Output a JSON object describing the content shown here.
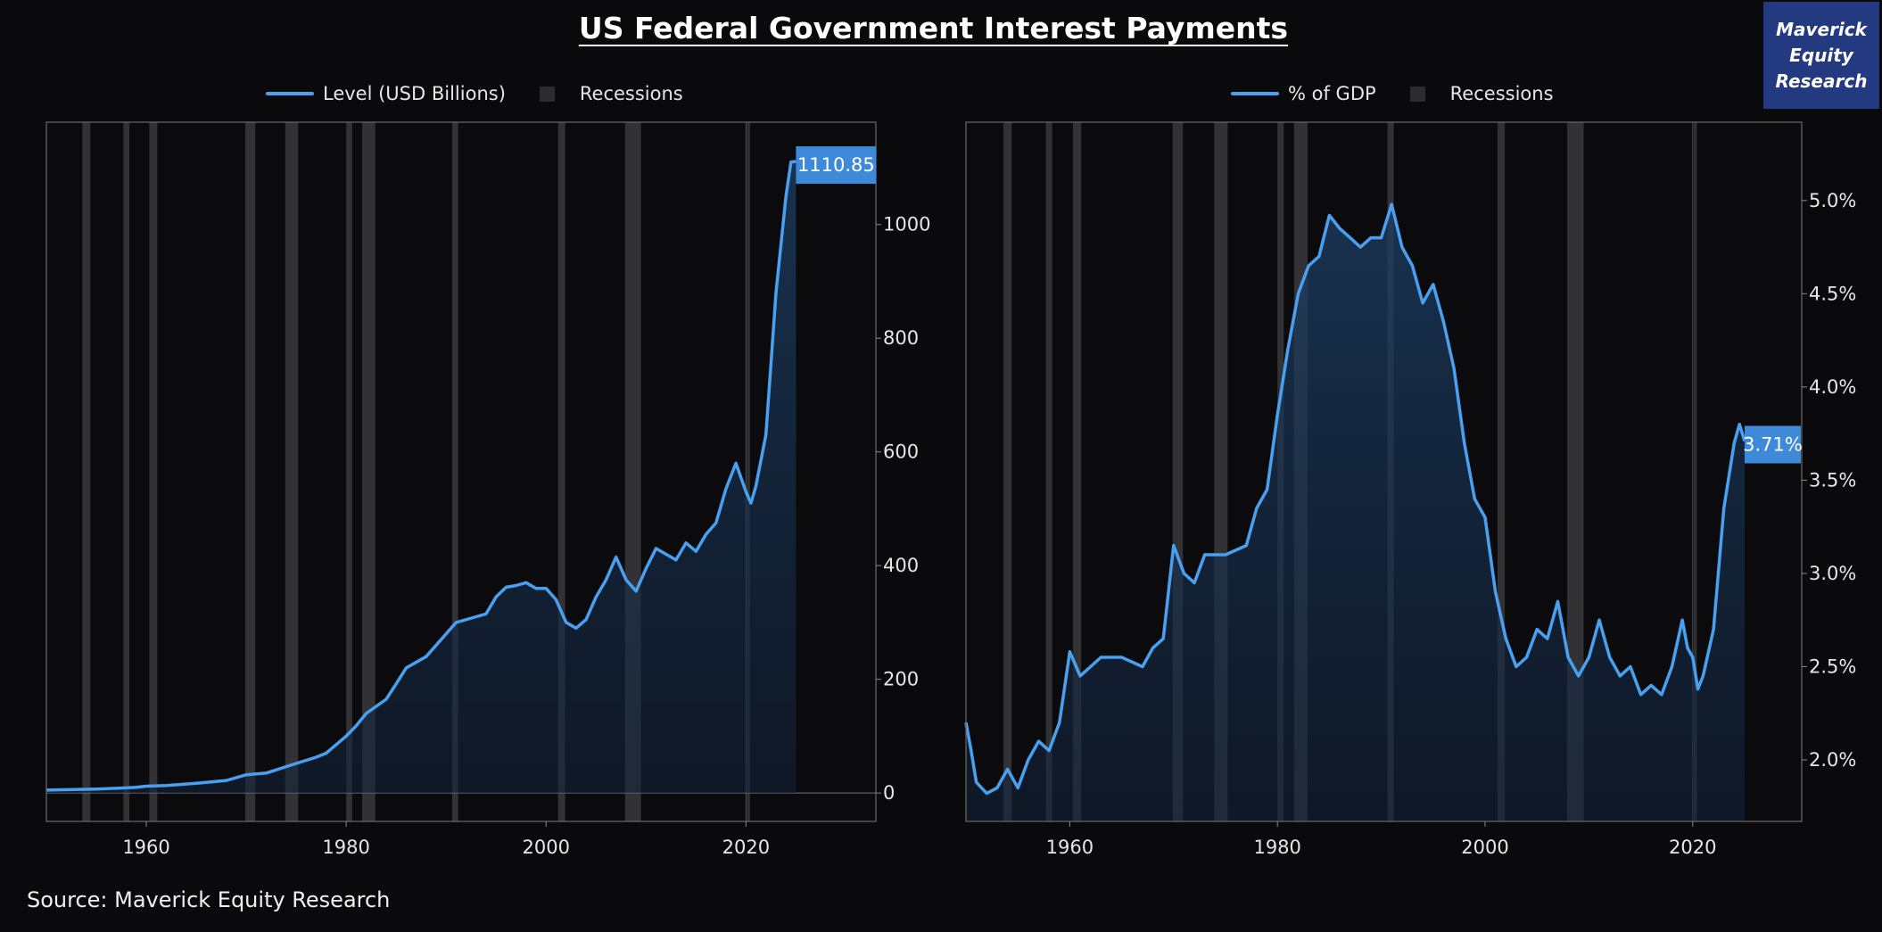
{
  "title": "US Federal Government Interest Payments",
  "brand": {
    "line1": "Maverick",
    "line2": "Equity",
    "line3": "Research"
  },
  "source": "Source: Maverick Equity Research",
  "colors": {
    "line": "#4aa0f0",
    "recession": "#3a3a3c",
    "label_bg": "#3f8ad8",
    "brand_bg": "#233a80"
  },
  "chart_data": [
    {
      "type": "line",
      "legend": {
        "series_label": "Level (USD Billions)",
        "recession_label": "Recessions",
        "placement": "top-center"
      },
      "x_ticks": [
        1960,
        1980,
        2000,
        2020
      ],
      "y_ticks": [
        0,
        200,
        400,
        600,
        800,
        1000
      ],
      "y_tick_labels": [
        "0",
        "200",
        "400",
        "600",
        "800",
        "1000"
      ],
      "xlim": [
        1950,
        2033
      ],
      "ylim": [
        -50,
        1180
      ],
      "zero_line": true,
      "last_value_label": "1110.85",
      "series": [
        {
          "name": "Level (USD Billions)",
          "x": [
            1950,
            1955,
            1958,
            1959,
            1960,
            1962,
            1965,
            1968,
            1970,
            1972,
            1975,
            1977,
            1978,
            1980,
            1981,
            1982,
            1984,
            1985,
            1986,
            1988,
            1990,
            1991,
            1993,
            1994,
            1995,
            1996,
            1997,
            1998,
            1999,
            2000,
            2001,
            2002,
            2003,
            2004,
            2005,
            2006,
            2007,
            2008,
            2009,
            2010,
            2011,
            2012,
            2013,
            2014,
            2015,
            2016,
            2017,
            2018,
            2019,
            2020,
            2020.5,
            2021,
            2022,
            2023,
            2024,
            2024.5,
            2025
          ],
          "values": [
            5,
            7,
            9,
            10,
            12,
            13,
            17,
            22,
            32,
            35,
            52,
            63,
            70,
            100,
            118,
            140,
            165,
            192,
            220,
            240,
            280,
            300,
            310,
            315,
            345,
            362,
            365,
            370,
            360,
            360,
            340,
            300,
            290,
            305,
            345,
            375,
            415,
            375,
            355,
            395,
            430,
            420,
            410,
            440,
            425,
            455,
            475,
            535,
            580,
            530,
            510,
            540,
            630,
            880,
            1050,
            1110,
            1110.85
          ]
        }
      ],
      "recessions": [
        [
          1953.6,
          1954.4
        ],
        [
          1957.7,
          1958.3
        ],
        [
          1960.3,
          1961.1
        ],
        [
          1969.9,
          1970.9
        ],
        [
          1973.9,
          1975.2
        ],
        [
          1980.0,
          1980.6
        ],
        [
          1981.6,
          1982.9
        ],
        [
          1990.6,
          1991.2
        ],
        [
          2001.2,
          2001.9
        ],
        [
          2007.9,
          2009.5
        ],
        [
          2020.1,
          2020.4
        ]
      ]
    },
    {
      "type": "line",
      "legend": {
        "series_label": "% of GDP",
        "recession_label": "Recessions",
        "placement": "top-center"
      },
      "x_ticks": [
        1960,
        1980,
        2000,
        2020
      ],
      "y_ticks": [
        2.0,
        2.5,
        3.0,
        3.5,
        4.0,
        4.5,
        5.0
      ],
      "y_tick_labels": [
        "2.0%",
        "2.5%",
        "3.0%",
        "3.5%",
        "4.0%",
        "4.5%",
        "5.0%"
      ],
      "xlim": [
        1950,
        2030.5
      ],
      "ylim": [
        1.67,
        5.42
      ],
      "zero_line": false,
      "last_value_label": "3.71%",
      "series": [
        {
          "name": "% of GDP",
          "x": [
            1950,
            1950.5,
            1951,
            1952,
            1953,
            1954,
            1955,
            1956,
            1957,
            1958,
            1959,
            1960,
            1961,
            1962,
            1963,
            1965,
            1967,
            1968,
            1969,
            1970,
            1971,
            1972,
            1973,
            1975,
            1977,
            1978,
            1979,
            1980,
            1981,
            1982,
            1983,
            1984,
            1985,
            1986,
            1987,
            1988,
            1989,
            1990,
            1991,
            1992,
            1993,
            1994,
            1995,
            1996,
            1997,
            1998,
            1999,
            2000,
            2001,
            2002,
            2003,
            2004,
            2005,
            2006,
            2007,
            2008,
            2009,
            2010,
            2011,
            2012,
            2013,
            2014,
            2015,
            2016,
            2017,
            2018,
            2019,
            2019.5,
            2020,
            2020.5,
            2021,
            2022,
            2023,
            2024,
            2024.5,
            2025
          ],
          "values": [
            2.2,
            2.05,
            1.88,
            1.82,
            1.85,
            1.95,
            1.85,
            2.0,
            2.1,
            2.05,
            2.2,
            2.58,
            2.45,
            2.5,
            2.55,
            2.55,
            2.5,
            2.6,
            2.65,
            3.15,
            3.0,
            2.95,
            3.1,
            3.1,
            3.15,
            3.35,
            3.45,
            3.85,
            4.2,
            4.5,
            4.65,
            4.7,
            4.92,
            4.85,
            4.8,
            4.75,
            4.8,
            4.8,
            4.98,
            4.75,
            4.65,
            4.45,
            4.55,
            4.35,
            4.1,
            3.7,
            3.4,
            3.3,
            2.9,
            2.65,
            2.5,
            2.55,
            2.7,
            2.65,
            2.85,
            2.55,
            2.45,
            2.55,
            2.75,
            2.55,
            2.45,
            2.5,
            2.35,
            2.4,
            2.35,
            2.5,
            2.75,
            2.6,
            2.55,
            2.38,
            2.45,
            2.7,
            3.35,
            3.7,
            3.8,
            3.71
          ]
        }
      ],
      "recessions": [
        [
          1953.6,
          1954.4
        ],
        [
          1957.7,
          1958.3
        ],
        [
          1960.3,
          1961.1
        ],
        [
          1969.9,
          1970.9
        ],
        [
          1973.9,
          1975.2
        ],
        [
          1980.0,
          1980.6
        ],
        [
          1981.6,
          1982.9
        ],
        [
          1990.6,
          1991.2
        ],
        [
          2001.2,
          2001.9
        ],
        [
          2007.9,
          2009.5
        ],
        [
          2020.1,
          2020.4
        ]
      ]
    }
  ]
}
